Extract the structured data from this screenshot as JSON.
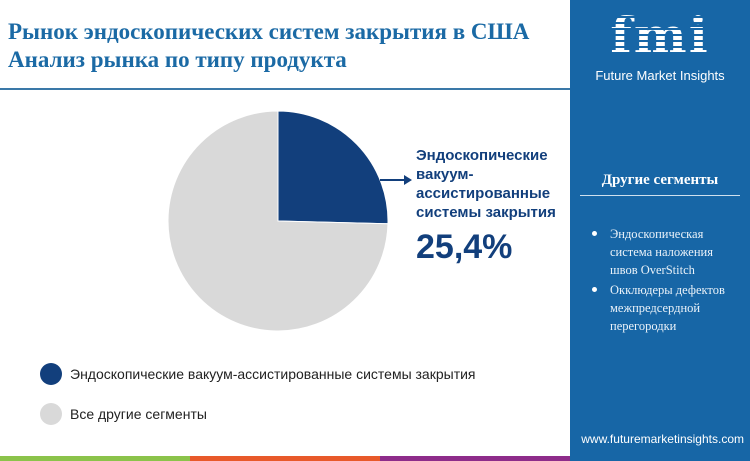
{
  "header": {
    "title_line1": "Рынок эндоскопических систем закрытия в США",
    "title_line2": "Анализ рынка по типу продукта"
  },
  "brand": {
    "logo_text": "fmi",
    "name": "Future Market Insights",
    "url": "www.futuremarketinsights.com"
  },
  "sidebar": {
    "heading": "Другие сегменты",
    "items": [
      "Эндоскопическая система наложения швов OverStitch",
      "Окклюдеры дефектов межпредсердной перегородки"
    ]
  },
  "colors": {
    "primary": "#123f7c",
    "other": "#d9d9d9",
    "sidebar": "#1766a6",
    "bar": [
      "#8bc34a",
      "#e8592a",
      "#8e2c8a"
    ]
  },
  "chart_data": {
    "type": "pie",
    "title": "Рынок эндоскопических систем закрытия в США Анализ рынка по типу продукта",
    "slices": [
      {
        "label": "Эндоскопические вакуум-ассистированные системы закрытия",
        "value": 25.4,
        "color": "#123f7c"
      },
      {
        "label": "Все другие сегменты",
        "value": 74.6,
        "color": "#d9d9d9"
      }
    ],
    "annotation": {
      "label": "Эндоскопические вакуум-ассистированные системы закрытия",
      "label_lines": [
        "Эндоскопические",
        "вакуум-",
        "ассистированные",
        "системы закрытия"
      ],
      "value": "25,4%"
    },
    "legend_position": "bottom-left"
  }
}
